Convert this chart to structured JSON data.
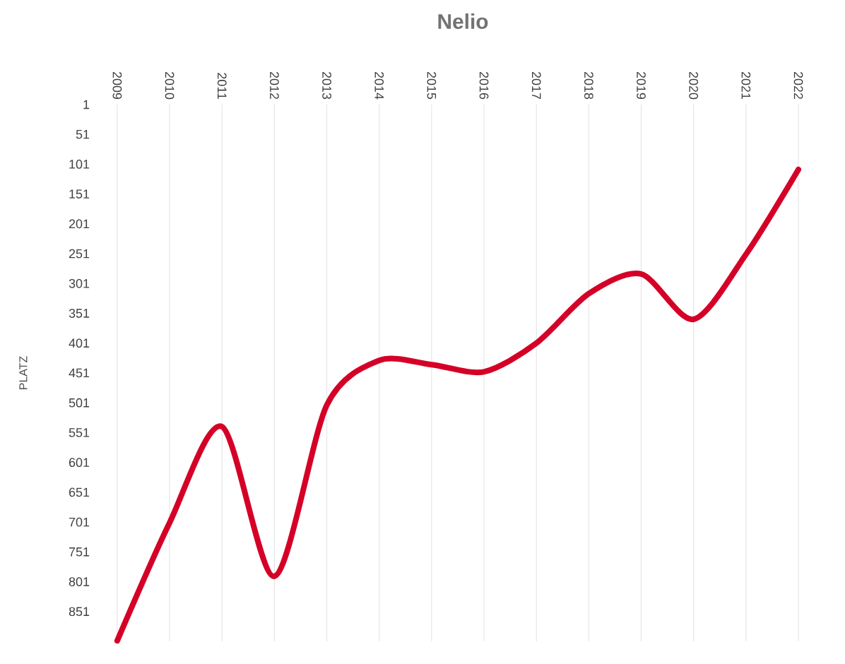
{
  "chart_data": {
    "type": "line",
    "title": "Nelio",
    "ylabel": "PLATZ",
    "categories": [
      "2009",
      "2010",
      "2011",
      "2012",
      "2013",
      "2014",
      "2015",
      "2016",
      "2017",
      "2018",
      "2019",
      "2020",
      "2021",
      "2022"
    ],
    "series": [
      {
        "color": "#d50027",
        "values": [
          900,
          702,
          541,
          792,
          505,
          430,
          437,
          449,
          401,
          318,
          285,
          361,
          252,
          110
        ]
      }
    ],
    "ylim": [
      901,
      1
    ],
    "yticks": [
      1,
      51,
      101,
      151,
      201,
      251,
      301,
      351,
      401,
      451,
      501,
      551,
      601,
      651,
      701,
      751,
      801,
      851
    ],
    "grid": "x",
    "marker": "none",
    "line_style": "solid"
  }
}
